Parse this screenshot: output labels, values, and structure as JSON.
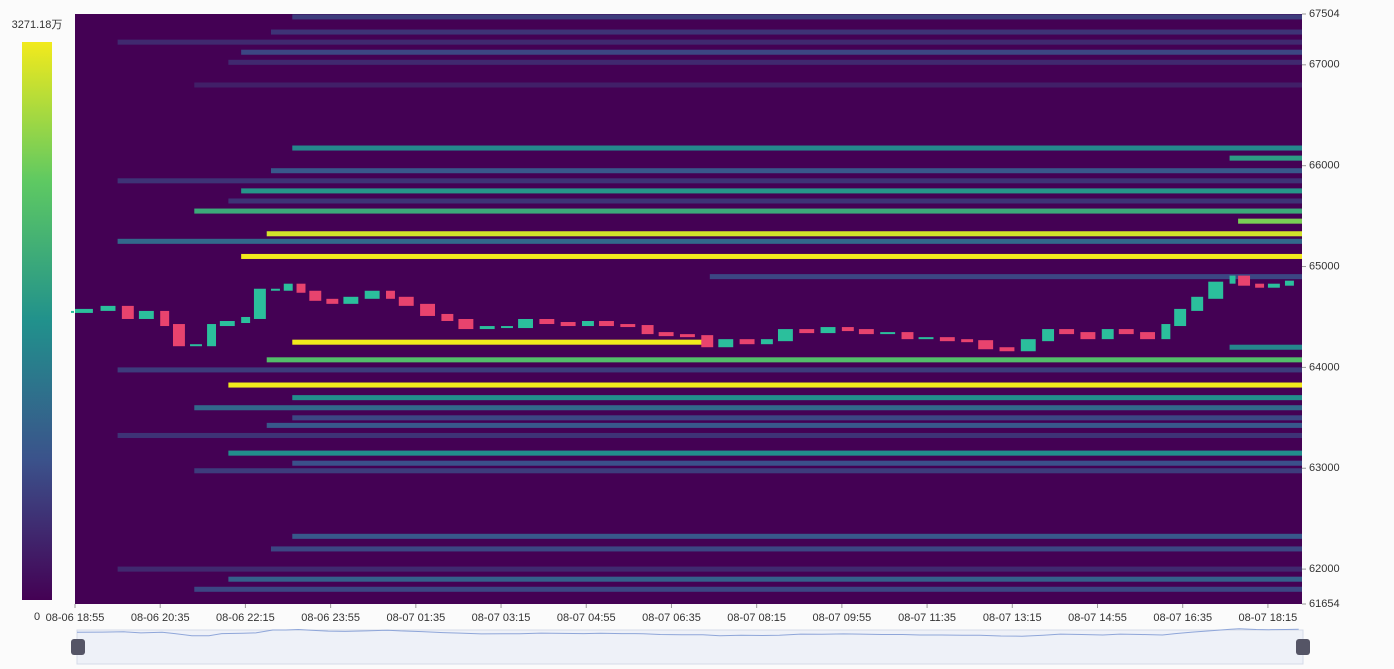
{
  "chart_data": {
    "type": "heatmap",
    "xlim": [
      "08-06 18:55",
      "08-07 18:55"
    ],
    "xticks": [
      "08-06 18:55",
      "08-06 20:35",
      "08-06 22:15",
      "08-06 23:55",
      "08-07 01:35",
      "08-07 03:15",
      "08-07 04:55",
      "08-07 06:35",
      "08-07 08:15",
      "08-07 09:55",
      "08-07 11:35",
      "08-07 13:15",
      "08-07 14:55",
      "08-07 16:35",
      "08-07 18:15"
    ],
    "ylim": [
      61654,
      67504
    ],
    "yticks": [
      61654,
      62000,
      63000,
      64000,
      65000,
      66000,
      67000,
      67504
    ],
    "colorscale": [
      "#440154",
      "#3b528b",
      "#21918c",
      "#5ec962",
      "#f2ea1c"
    ],
    "colorbar": {
      "min": 0,
      "max": {
        "value": 3271.18,
        "label": "3271.18万"
      }
    },
    "bands": [
      {
        "price": 67475,
        "start": "08-06 23:10",
        "value": 600
      },
      {
        "price": 67325,
        "start": "08-06 22:45",
        "value": 500
      },
      {
        "price": 67225,
        "start": "08-06 19:45",
        "value": 400
      },
      {
        "price": 67125,
        "start": "08-06 22:10",
        "value": 700
      },
      {
        "price": 67025,
        "start": "08-06 21:55",
        "value": 400
      },
      {
        "price": 66800,
        "start": "08-06 21:15",
        "value": 300
      },
      {
        "price": 66175,
        "start": "08-06 23:10",
        "value": 1500
      },
      {
        "price": 66075,
        "start": "08-07 17:30",
        "value": 1800
      },
      {
        "price": 65950,
        "start": "08-06 22:45",
        "value": 900
      },
      {
        "price": 65850,
        "start": "08-06 19:45",
        "value": 500
      },
      {
        "price": 65750,
        "start": "08-06 22:10",
        "value": 1700
      },
      {
        "price": 65650,
        "start": "08-06 21:55",
        "value": 500
      },
      {
        "price": 65550,
        "start": "08-06 21:15",
        "value": 2000
      },
      {
        "price": 65450,
        "start": "08-07 17:40",
        "value": 2600
      },
      {
        "price": 65325,
        "start": "08-06 22:40",
        "value": 3100
      },
      {
        "price": 65250,
        "start": "08-06 19:45",
        "value": 1100
      },
      {
        "price": 65100,
        "start": "08-06 22:10",
        "value": 3271.18
      },
      {
        "price": 64900,
        "start": "08-07 07:20",
        "value": 700
      },
      {
        "price": 64250,
        "start": "08-06 23:10",
        "end": "08-07 07:20",
        "value": 3271.18
      },
      {
        "price": 64200,
        "start": "08-07 17:30",
        "value": 1500
      },
      {
        "price": 64075,
        "start": "08-06 22:40",
        "value": 2300
      },
      {
        "price": 63975,
        "start": "08-06 19:45",
        "value": 600
      },
      {
        "price": 63825,
        "start": "08-06 21:55",
        "value": 3271.18
      },
      {
        "price": 63700,
        "start": "08-06 23:10",
        "value": 1600
      },
      {
        "price": 63600,
        "start": "08-06 21:15",
        "value": 1100
      },
      {
        "price": 63500,
        "start": "08-06 23:10",
        "value": 700
      },
      {
        "price": 63425,
        "start": "08-06 22:40",
        "value": 900
      },
      {
        "price": 63325,
        "start": "08-06 19:45",
        "value": 500
      },
      {
        "price": 63150,
        "start": "08-06 21:55",
        "value": 1600
      },
      {
        "price": 63050,
        "start": "08-06 23:10",
        "value": 800
      },
      {
        "price": 62975,
        "start": "08-06 21:15",
        "value": 600
      },
      {
        "price": 62325,
        "start": "08-06 23:10",
        "value": 900
      },
      {
        "price": 62200,
        "start": "08-06 22:45",
        "value": 700
      },
      {
        "price": 62000,
        "start": "08-06 19:45",
        "value": 400
      },
      {
        "price": 61900,
        "start": "08-06 21:55",
        "value": 1000
      },
      {
        "price": 61800,
        "start": "08-06 21:15",
        "value": 700
      }
    ],
    "price": {
      "up_color": "#2bbf9c",
      "down_color": "#e8436e",
      "x": [
        "08-06 18:55",
        "08-06 19:25",
        "08-06 19:50",
        "08-06 20:10",
        "08-06 20:35",
        "08-06 20:50",
        "08-06 21:10",
        "08-06 21:30",
        "08-06 21:45",
        "08-06 22:10",
        "08-06 22:25",
        "08-06 22:45",
        "08-06 23:00",
        "08-06 23:15",
        "08-06 23:30",
        "08-06 23:50",
        "08-07 00:10",
        "08-07 00:35",
        "08-07 01:00",
        "08-07 01:15",
        "08-07 01:40",
        "08-07 02:05",
        "08-07 02:25",
        "08-07 02:50",
        "08-07 03:15",
        "08-07 03:35",
        "08-07 04:00",
        "08-07 04:25",
        "08-07 04:50",
        "08-07 05:10",
        "08-07 05:35",
        "08-07 06:00",
        "08-07 06:20",
        "08-07 06:45",
        "08-07 07:10",
        "08-07 07:30",
        "08-07 07:55",
        "08-07 08:20",
        "08-07 08:40",
        "08-07 09:05",
        "08-07 09:30",
        "08-07 09:55",
        "08-07 10:15",
        "08-07 10:40",
        "08-07 11:05",
        "08-07 11:25",
        "08-07 11:50",
        "08-07 12:15",
        "08-07 12:35",
        "08-07 13:00",
        "08-07 13:25",
        "08-07 13:50",
        "08-07 14:10",
        "08-07 14:35",
        "08-07 15:00",
        "08-07 15:20",
        "08-07 15:45",
        "08-07 16:10",
        "08-07 16:25",
        "08-07 16:45",
        "08-07 17:05",
        "08-07 17:30",
        "08-07 17:40",
        "08-07 18:00",
        "08-07 18:15",
        "08-07 18:35",
        "08-07 18:50"
      ],
      "values": [
        64550,
        64570,
        64600,
        64490,
        64550,
        64420,
        64220,
        64220,
        64420,
        64450,
        64490,
        64770,
        64770,
        64820,
        64750,
        64670,
        64640,
        64690,
        64750,
        64690,
        64620,
        64520,
        64470,
        64390,
        64400,
        64400,
        64470,
        64440,
        64420,
        64450,
        64420,
        64410,
        64340,
        64320,
        64310,
        64210,
        64270,
        64240,
        64270,
        64370,
        64350,
        64390,
        64370,
        64340,
        64340,
        64290,
        64290,
        64270,
        64260,
        64190,
        64170,
        64270,
        64370,
        64340,
        64290,
        64370,
        64340,
        64290,
        64420,
        64570,
        64690,
        64840,
        64900,
        64820,
        64800,
        64820,
        64850
      ]
    }
  }
}
